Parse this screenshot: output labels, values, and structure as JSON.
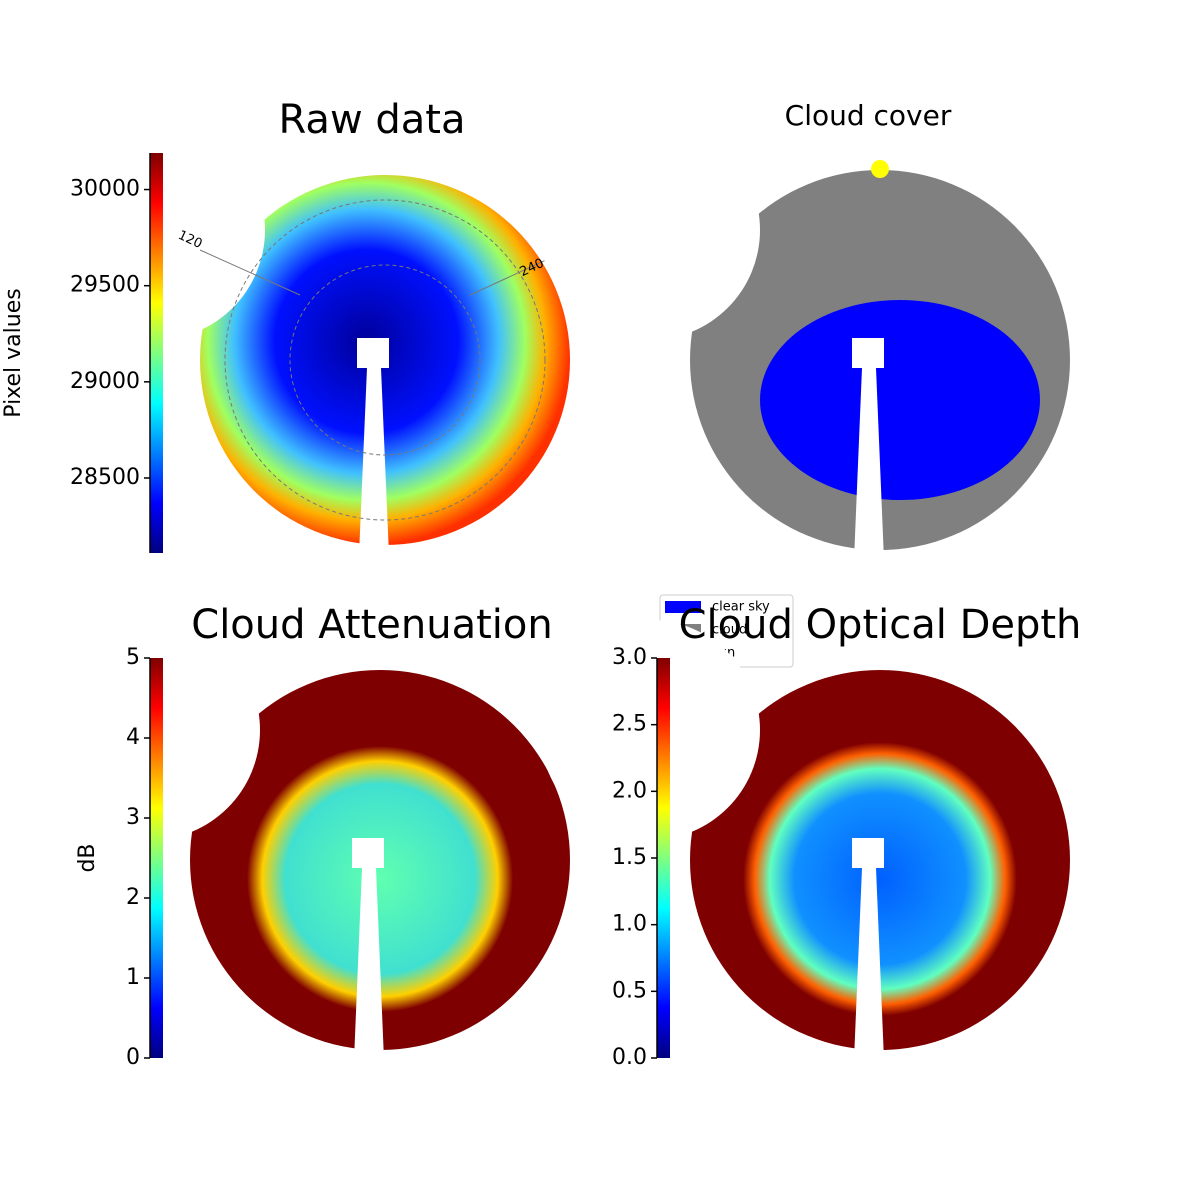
{
  "chart_data": [
    {
      "type": "heatmap",
      "title": "Raw data",
      "colormap": "jet",
      "colorbar_label": "Pixel values",
      "ylim": [
        28110,
        30190
      ],
      "yticks": [
        28500,
        29000,
        29500,
        30000
      ],
      "annotations": [
        "120",
        "240"
      ]
    },
    {
      "type": "categorical-map",
      "title": "Cloud cover",
      "categories": [
        "clear sky",
        "cloud",
        "sun"
      ],
      "colors": [
        "#0000ff",
        "#808080",
        "#ffff00"
      ]
    },
    {
      "type": "heatmap",
      "title": "Cloud Attenuation",
      "colormap": "jet",
      "colorbar_label": "dB",
      "ylim": [
        0,
        5
      ],
      "yticks": [
        0,
        1,
        2,
        3,
        4,
        5
      ]
    },
    {
      "type": "heatmap",
      "title": "Cloud Optical Depth",
      "colormap": "jet",
      "ylim": [
        0,
        3
      ],
      "yticks": [
        {
          "value": 0,
          "label": "0.0"
        },
        0.5,
        {
          "value": 1,
          "label": "1.0"
        },
        1.5,
        {
          "value": 2,
          "label": "2.0"
        },
        2.5,
        {
          "value": 3,
          "label": "3.0"
        }
      ]
    }
  ]
}
